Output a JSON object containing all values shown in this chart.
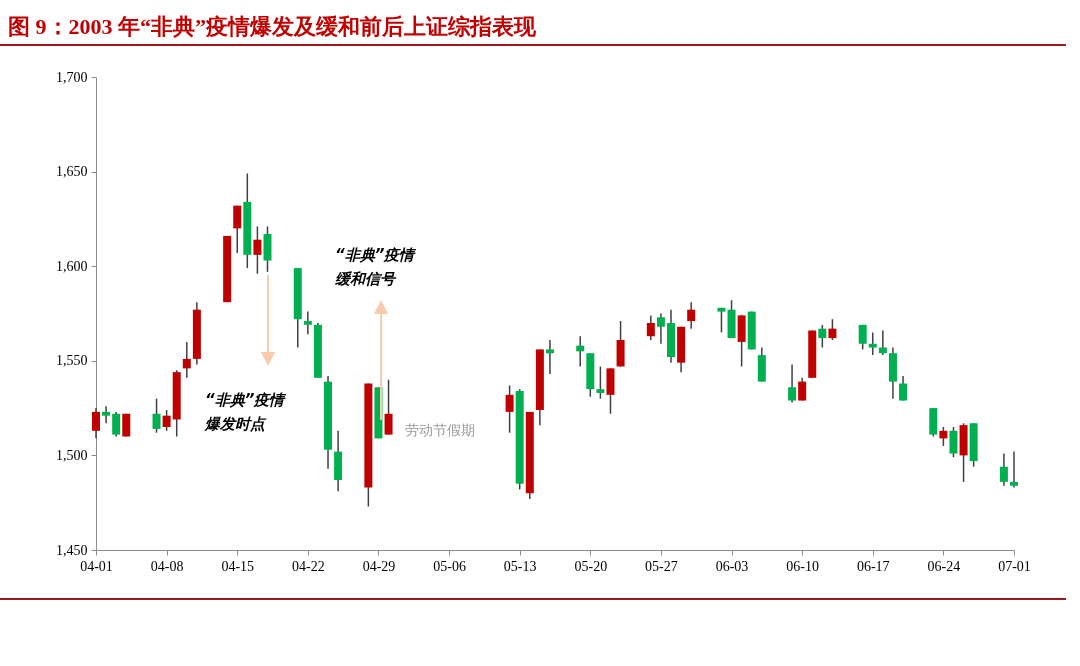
{
  "chart_data": {
    "type": "candlestick",
    "title": "图 9：2003 年“非典”疫情爆发及缓和前后上证综指表现",
    "x": [
      "--04-01",
      "--04-02",
      "--04-03",
      "--04-04",
      "--04-07",
      "--04-08",
      "--04-09",
      "--04-10",
      "--04-11",
      "--04-14",
      "--04-15",
      "--04-16",
      "--04-17",
      "--04-18",
      "--04-21",
      "--04-22",
      "--04-23",
      "--04-24",
      "--04-25",
      "--04-28",
      "--04-29",
      "--04-30",
      "--05-12",
      "--05-13",
      "--05-14",
      "--05-15",
      "--05-16",
      "--05-19",
      "--05-20",
      "--05-21",
      "--05-22",
      "--05-23",
      "--05-26",
      "--05-27",
      "--05-28",
      "--05-29",
      "--05-30",
      "--06-02",
      "--06-03",
      "--06-04",
      "--06-05",
      "--06-06",
      "--06-09",
      "--06-10",
      "--06-11",
      "--06-12",
      "--06-13",
      "--06-16",
      "--06-17",
      "--06-18",
      "--06-19",
      "--06-20",
      "--06-23",
      "--06-24",
      "--06-25",
      "--06-26",
      "--06-27",
      "--06-30",
      "--07-01"
    ],
    "ohlc": [
      [
        1513,
        1525,
        1509,
        1523
      ],
      [
        1523,
        1526,
        1517,
        1521
      ],
      [
        1522,
        1523,
        1510,
        1511
      ],
      [
        1510,
        1522,
        1510,
        1522
      ],
      [
        1522,
        1530,
        1512,
        1514
      ],
      [
        1515,
        1524,
        1513,
        1521
      ],
      [
        1519,
        1545,
        1510,
        1544
      ],
      [
        1546,
        1560,
        1541,
        1551
      ],
      [
        1551,
        1581,
        1548,
        1577
      ],
      [
        1581,
        1616,
        1581,
        1616
      ],
      [
        1620,
        1632,
        1607,
        1632
      ],
      [
        1634,
        1649,
        1599,
        1606
      ],
      [
        1606,
        1621,
        1596,
        1614
      ],
      [
        1617,
        1621,
        1597,
        1603
      ],
      [
        1599,
        1599,
        1557,
        1572
      ],
      [
        1571,
        1576,
        1564,
        1569
      ],
      [
        1569,
        1570,
        1541,
        1541
      ],
      [
        1539,
        1542,
        1493,
        1503
      ],
      [
        1502,
        1513,
        1481,
        1487
      ],
      [
        1483,
        1538,
        1473,
        1538
      ],
      [
        1536,
        1536,
        1509,
        1509
      ],
      [
        1511,
        1540,
        1511,
        1522
      ],
      [
        1523,
        1537,
        1512,
        1532
      ],
      [
        1534,
        1535,
        1482,
        1485
      ],
      [
        1480,
        1523,
        1477,
        1523
      ],
      [
        1524,
        1556,
        1516,
        1556
      ],
      [
        1556,
        1561,
        1543,
        1554
      ],
      [
        1558,
        1563,
        1547,
        1555
      ],
      [
        1554,
        1554,
        1531,
        1535
      ],
      [
        1535,
        1547,
        1530,
        1533
      ],
      [
        1532,
        1546,
        1522,
        1546
      ],
      [
        1547,
        1571,
        1547,
        1561
      ],
      [
        1563,
        1574,
        1561,
        1570
      ],
      [
        1573,
        1575,
        1559,
        1568
      ],
      [
        1570,
        1577,
        1549,
        1552
      ],
      [
        1549,
        1568,
        1544,
        1568
      ],
      [
        1571,
        1581,
        1567,
        1577
      ],
      [
        1578,
        1578,
        1565,
        1576
      ],
      [
        1577,
        1582,
        1562,
        1562
      ],
      [
        1560,
        1574,
        1547,
        1574
      ],
      [
        1576,
        1576,
        1556,
        1556
      ],
      [
        1553,
        1557,
        1539,
        1539
      ],
      [
        1536,
        1548,
        1528,
        1529
      ],
      [
        1529,
        1541,
        1529,
        1539
      ],
      [
        1541,
        1566,
        1541,
        1566
      ],
      [
        1567,
        1569,
        1557,
        1562
      ],
      [
        1562,
        1572,
        1561,
        1567
      ],
      [
        1569,
        1569,
        1556,
        1559
      ],
      [
        1559,
        1565,
        1553,
        1557
      ],
      [
        1557,
        1566,
        1553,
        1554
      ],
      [
        1554,
        1557,
        1530,
        1539
      ],
      [
        1538,
        1542,
        1529,
        1529
      ],
      [
        1525,
        1525,
        1510,
        1511
      ],
      [
        1509,
        1515,
        1505,
        1513
      ],
      [
        1513,
        1515,
        1499,
        1501
      ],
      [
        1500,
        1517,
        1486,
        1516
      ],
      [
        1517,
        1517,
        1494,
        1497
      ],
      [
        1494,
        1501,
        1484,
        1486
      ],
      [
        1486,
        1502,
        1483,
        1484
      ]
    ],
    "colors": [
      "#c00000",
      "#00b050",
      "#00b050",
      "#c00000",
      "#00b050",
      "#c00000",
      "#c00000",
      "#c00000",
      "#c00000",
      "#c00000",
      "#c00000",
      "#00b050",
      "#c00000",
      "#00b050",
      "#00b050",
      "#00b050",
      "#00b050",
      "#00b050",
      "#00b050",
      "#c00000",
      "#00b050",
      "#c00000",
      "#c00000",
      "#00b050",
      "#c00000",
      "#c00000",
      "#00b050",
      "#00b050",
      "#00b050",
      "#00b050",
      "#c00000",
      "#c00000",
      "#c00000",
      "#00b050",
      "#00b050",
      "#c00000",
      "#c00000",
      "#00b050",
      "#00b050",
      "#c00000",
      "#00b050",
      "#00b050",
      "#00b050",
      "#c00000",
      "#c00000",
      "#00b050",
      "#c00000",
      "#00b050",
      "#00b050",
      "#00b050",
      "#00b050",
      "#00b050",
      "#00b050",
      "#c00000",
      "#00b050",
      "#c00000",
      "#00b050",
      "#00b050",
      "#00b050"
    ],
    "xlim": [
      "--04-01",
      "--07-01"
    ],
    "xticks": [
      {
        "value": "--04-01",
        "label": "04-01"
      },
      {
        "value": "--04-08",
        "label": "04-08"
      },
      {
        "value": "--04-15",
        "label": "04-15"
      },
      {
        "value": "--04-22",
        "label": "04-22"
      },
      {
        "value": "--04-29",
        "label": "04-29"
      },
      {
        "value": "--05-06",
        "label": "05-06"
      },
      {
        "value": "--05-13",
        "label": "05-13"
      },
      {
        "value": "--05-20",
        "label": "05-20"
      },
      {
        "value": "--05-27",
        "label": "05-27"
      },
      {
        "value": "--06-03",
        "label": "06-03"
      },
      {
        "value": "--06-10",
        "label": "06-10"
      },
      {
        "value": "--06-17",
        "label": "06-17"
      },
      {
        "value": "--06-24",
        "label": "06-24"
      },
      {
        "value": "--07-01",
        "label": "07-01"
      }
    ],
    "ylim": [
      1450,
      1700
    ],
    "yticks": [
      {
        "value": 1450,
        "label": "1,450"
      },
      {
        "value": 1500,
        "label": "1,500"
      },
      {
        "value": 1550,
        "label": "1,550"
      },
      {
        "value": 1600,
        "label": "1,600"
      },
      {
        "value": 1650,
        "label": "1,650"
      },
      {
        "value": 1700,
        "label": "1,700"
      }
    ],
    "annotations": [
      "“非典”疫情爆发时点",
      "“非典”疫情缓和信号",
      "劳动节假期"
    ]
  }
}
